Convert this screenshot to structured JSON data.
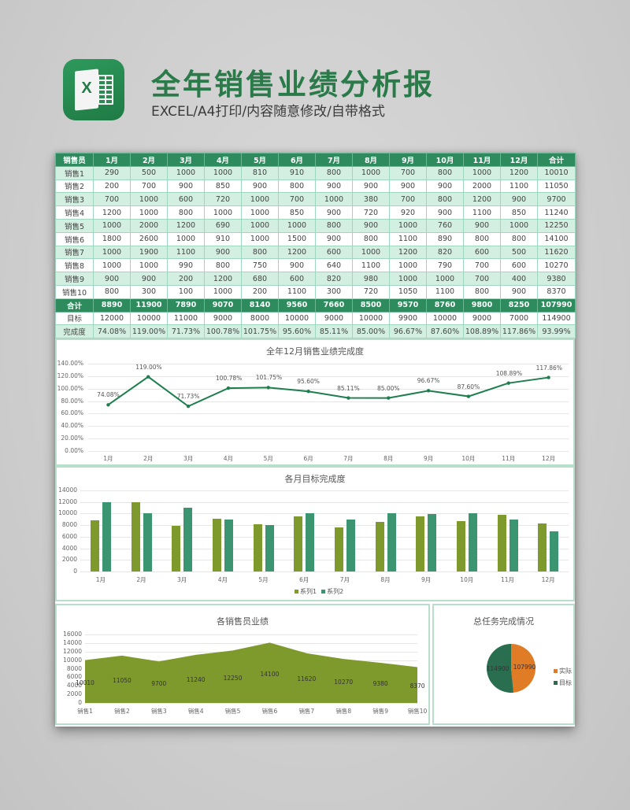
{
  "header": {
    "title": "全年销售业绩分析报",
    "subtitle": "EXCEL/A4打印/内容随意修改/自带格式",
    "app_icon_letter": "X"
  },
  "colors": {
    "header_green": "#2e8b5e",
    "row_alt": "#d3efe2",
    "line_green": "#1e7e4e",
    "bar_series1": "#7f9a2c",
    "bar_series2": "#3a9570",
    "area_fill": "#7f9a2c",
    "pie_actual": "#e07b26",
    "pie_target": "#2a6e50"
  },
  "table": {
    "headers": [
      "销售员",
      "1月",
      "2月",
      "3月",
      "4月",
      "5月",
      "6月",
      "7月",
      "8月",
      "9月",
      "10月",
      "11月",
      "12月",
      "合计"
    ],
    "rows": [
      [
        "销售1",
        "290",
        "500",
        "1000",
        "1000",
        "810",
        "910",
        "800",
        "1000",
        "700",
        "800",
        "1000",
        "1200",
        "10010"
      ],
      [
        "销售2",
        "200",
        "700",
        "900",
        "850",
        "900",
        "800",
        "900",
        "900",
        "900",
        "900",
        "2000",
        "1100",
        "11050"
      ],
      [
        "销售3",
        "700",
        "1000",
        "600",
        "720",
        "1000",
        "700",
        "1000",
        "380",
        "700",
        "800",
        "1200",
        "900",
        "9700"
      ],
      [
        "销售4",
        "1200",
        "1000",
        "800",
        "1000",
        "1000",
        "850",
        "900",
        "720",
        "920",
        "900",
        "1100",
        "850",
        "11240"
      ],
      [
        "销售5",
        "1000",
        "2000",
        "1200",
        "690",
        "1000",
        "1000",
        "800",
        "900",
        "1000",
        "760",
        "900",
        "1000",
        "12250"
      ],
      [
        "销售6",
        "1800",
        "2600",
        "1000",
        "910",
        "1000",
        "1500",
        "900",
        "800",
        "1100",
        "890",
        "800",
        "800",
        "14100"
      ],
      [
        "销售7",
        "1000",
        "1900",
        "1100",
        "900",
        "800",
        "1200",
        "600",
        "1000",
        "1200",
        "820",
        "600",
        "500",
        "11620"
      ],
      [
        "销售8",
        "1000",
        "1000",
        "990",
        "800",
        "750",
        "900",
        "640",
        "1100",
        "1000",
        "790",
        "700",
        "600",
        "10270"
      ],
      [
        "销售9",
        "900",
        "900",
        "200",
        "1200",
        "680",
        "600",
        "820",
        "980",
        "1000",
        "1000",
        "700",
        "400",
        "9380"
      ],
      [
        "销售10",
        "800",
        "300",
        "100",
        "1000",
        "200",
        "1100",
        "300",
        "720",
        "1050",
        "1100",
        "800",
        "900",
        "8370"
      ]
    ],
    "total": [
      "合计",
      "8890",
      "11900",
      "7890",
      "9070",
      "8140",
      "9560",
      "7660",
      "8500",
      "9570",
      "8760",
      "9800",
      "8250",
      "107990"
    ],
    "target": [
      "目标",
      "12000",
      "10000",
      "11000",
      "9000",
      "8000",
      "10000",
      "9000",
      "10000",
      "9900",
      "10000",
      "9000",
      "7000",
      "114900"
    ],
    "rate": [
      "完成度",
      "74.08%",
      "119.00%",
      "71.73%",
      "100.78%",
      "101.75%",
      "95.60%",
      "85.11%",
      "85.00%",
      "96.67%",
      "87.60%",
      "108.89%",
      "117.86%",
      "93.99%"
    ]
  },
  "chart_data": [
    {
      "type": "line",
      "title": "全年12月销售业绩完成度",
      "categories": [
        "1月",
        "2月",
        "3月",
        "4月",
        "5月",
        "6月",
        "7月",
        "8月",
        "9月",
        "10月",
        "11月",
        "12月"
      ],
      "values": [
        74.08,
        119.0,
        71.73,
        100.78,
        101.75,
        95.6,
        85.11,
        85.0,
        96.67,
        87.6,
        108.89,
        117.86
      ],
      "data_labels": [
        "74.08%",
        "119.00%",
        "71.73%",
        "100.78%",
        "101.75%",
        "95.60%",
        "85.11%",
        "85.00%",
        "96.67%",
        "87.60%",
        "108.89%",
        "117.86%"
      ],
      "yticks": [
        "140.00%",
        "120.00%",
        "100.00%",
        "80.00%",
        "60.00%",
        "40.00%",
        "20.00%",
        "0.00%"
      ],
      "ylim": [
        0,
        140
      ],
      "xlabel": "",
      "ylabel": "",
      "grid": true
    },
    {
      "type": "bar",
      "title": "各月目标完成度",
      "categories": [
        "1月",
        "2月",
        "3月",
        "4月",
        "5月",
        "6月",
        "7月",
        "8月",
        "9月",
        "10月",
        "11月",
        "12月"
      ],
      "series": [
        {
          "name": "系列1",
          "values": [
            8890,
            11900,
            7890,
            9070,
            8140,
            9560,
            7660,
            8500,
            9570,
            8760,
            9800,
            8250
          ]
        },
        {
          "name": "系列2",
          "values": [
            12000,
            10000,
            11000,
            9000,
            8000,
            10000,
            9000,
            10000,
            9900,
            10000,
            9000,
            7000
          ]
        }
      ],
      "yticks": [
        "14000",
        "12000",
        "10000",
        "8000",
        "6000",
        "4000",
        "2000",
        "0"
      ],
      "ylim": [
        0,
        14000
      ],
      "legend_position": "bottom",
      "grid": true
    },
    {
      "type": "area",
      "title": "各销售员业绩",
      "categories": [
        "销售1",
        "销售2",
        "销售3",
        "销售4",
        "销售5",
        "销售6",
        "销售7",
        "销售8",
        "销售9",
        "销售10"
      ],
      "values": [
        10010,
        11050,
        9700,
        11240,
        12250,
        14100,
        11620,
        10270,
        9380,
        8370
      ],
      "data_labels": [
        "10010",
        "11050",
        "9700",
        "11240",
        "12250",
        "14100",
        "11620",
        "10270",
        "9380",
        "8370"
      ],
      "yticks": [
        "16000",
        "14000",
        "12000",
        "10000",
        "8000",
        "6000",
        "4000",
        "2000",
        "0"
      ],
      "ylim": [
        0,
        16000
      ],
      "grid": true
    },
    {
      "type": "pie",
      "title": "总任务完成情况",
      "labels": [
        "实际",
        "目标"
      ],
      "values": [
        107990,
        114900
      ],
      "data_labels": [
        "107990",
        "114900"
      ],
      "legend_position": "right"
    }
  ]
}
